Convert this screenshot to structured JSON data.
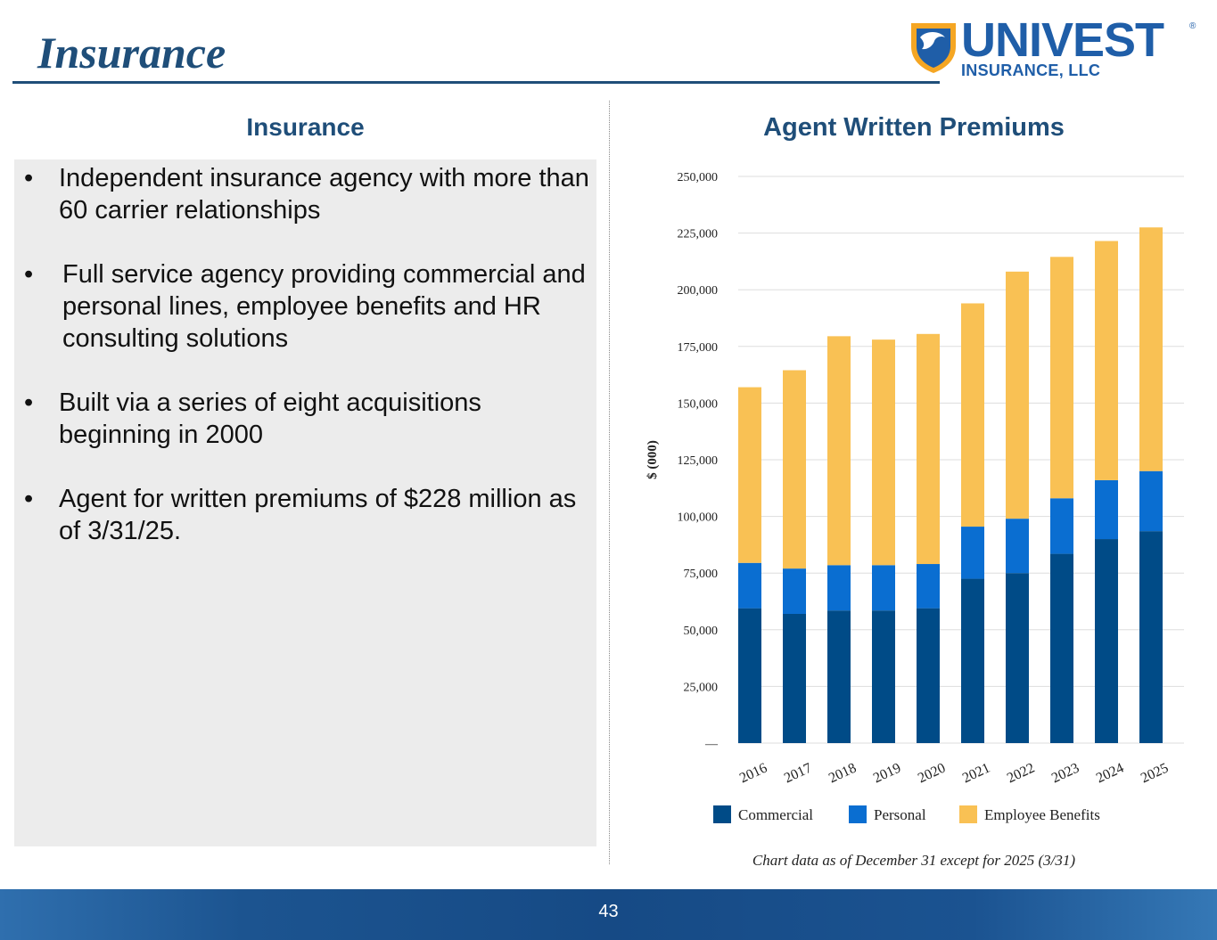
{
  "page": {
    "title": "Insurance",
    "page_number": "43"
  },
  "logo": {
    "name": "UNIVEST",
    "reg_mark": "®",
    "subtitle": "INSURANCE, LLC",
    "colors": {
      "blue": "#1f5ea8",
      "gold": "#f5a623"
    }
  },
  "left": {
    "heading": "Insurance",
    "bullets": [
      "Independent insurance agency with more than 60 carrier relationships",
      "Full service agency providing commercial and personal lines, employee benefits and HR consulting solutions",
      "Built via a series of eight acquisitions beginning in 2000",
      "Agent for written premiums of $228 million as of 3/31/25."
    ],
    "bullet_symbol": "•"
  },
  "chart_title": "Agent Written Premiums",
  "footnote": "Chart data as of December 31 except for 2025 (3/31)",
  "chart_data": {
    "type": "bar",
    "stacked": true,
    "title": "Agent Written Premiums",
    "xlabel": "",
    "ylabel": "$ (000)",
    "ylim": [
      0,
      250000
    ],
    "yticks": [
      0,
      25000,
      50000,
      75000,
      100000,
      125000,
      150000,
      175000,
      200000,
      225000,
      250000
    ],
    "ytick_labels": [
      "—",
      "25,000",
      "50,000",
      "75,000",
      "100,000",
      "125,000",
      "150,000",
      "175,000",
      "200,000",
      "225,000",
      "250,000"
    ],
    "categories": [
      "2016",
      "2017",
      "2018",
      "2019",
      "2020",
      "2021",
      "2022",
      "2023",
      "2024",
      "2025"
    ],
    "series": [
      {
        "name": "Commercial",
        "color": "#004b87",
        "values": [
          59500,
          57000,
          58500,
          58500,
          59500,
          72500,
          75000,
          83500,
          90000,
          93500
        ]
      },
      {
        "name": "Personal",
        "color": "#0a6ed1",
        "values": [
          20000,
          20000,
          20000,
          20000,
          19500,
          23000,
          24000,
          24500,
          26000,
          26500
        ]
      },
      {
        "name": "Employee Benefits",
        "color": "#f9c154",
        "values": [
          77500,
          87500,
          101000,
          99500,
          101500,
          98500,
          109000,
          106500,
          105500,
          107500
        ]
      }
    ],
    "legend_position": "bottom",
    "grid": true
  }
}
